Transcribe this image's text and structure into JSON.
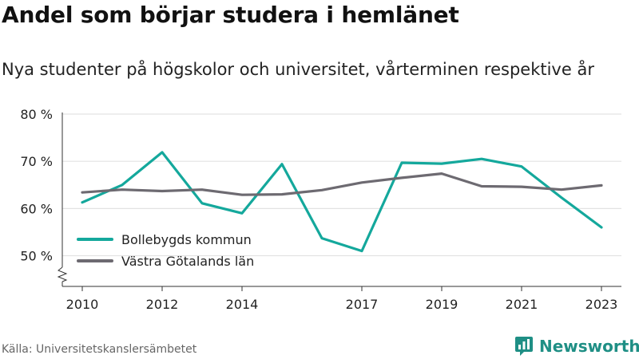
{
  "title": "Andel som börjar studera i hemlänet",
  "subtitle": "Nya studenter på högskolor och universitet, vårterminen respektive år",
  "source": "Källa: Universitetskanslersämbetet",
  "brand": {
    "name": "Newsworthy",
    "icon": "newsworthy-logo-icon"
  },
  "chart_data": {
    "type": "line",
    "x": [
      2010,
      2011,
      2012,
      2013,
      2014,
      2015,
      2016,
      2017,
      2018,
      2019,
      2020,
      2021,
      2022,
      2023
    ],
    "x_ticks": [
      2010,
      2012,
      2014,
      2017,
      2019,
      2021,
      2023
    ],
    "y_ticks": [
      50,
      60,
      70,
      80
    ],
    "y_tick_labels": [
      "50 %",
      "60 %",
      "70 %",
      "80 %"
    ],
    "ylim": [
      43.5,
      80
    ],
    "xlim": [
      2009.5,
      2023.5
    ],
    "axis_break": true,
    "grid": true,
    "legend_position": "lower-left",
    "series": [
      {
        "name": "Bollebygds kommun",
        "color": "#14a89c",
        "values": [
          61.3,
          65.0,
          71.9,
          61.1,
          59.0,
          69.4,
          53.7,
          51.0,
          69.7,
          69.5,
          70.5,
          68.9,
          62.3,
          56.0
        ]
      },
      {
        "name": "Västra Götalands län",
        "color": "#6d6a71",
        "values": [
          63.4,
          64.0,
          63.7,
          64.0,
          62.9,
          63.0,
          63.9,
          65.5,
          66.5,
          67.4,
          64.7,
          64.6,
          64.0,
          64.9
        ]
      }
    ]
  }
}
